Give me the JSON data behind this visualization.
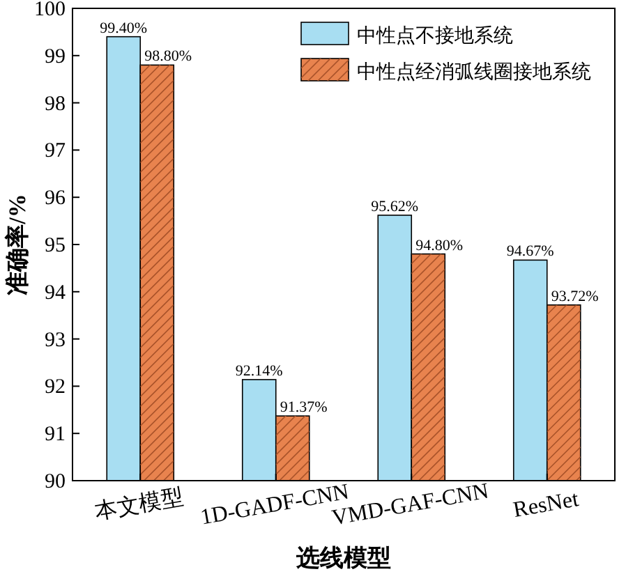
{
  "chart_data": {
    "type": "bar",
    "categories": [
      "本文模型",
      "1D-GADF-CNN",
      "VMD-GAF-CNN",
      "ResNet"
    ],
    "series": [
      {
        "name": "中性点不接地系统",
        "color": "#a8def2",
        "values": [
          99.4,
          92.14,
          95.62,
          94.67
        ],
        "value_labels": [
          "99.40%",
          "92.14%",
          "95.62%",
          "94.67%"
        ]
      },
      {
        "name": "中性点经消弧线圈接地系统",
        "color": "#e8834e",
        "values": [
          98.8,
          91.37,
          94.8,
          93.72
        ],
        "value_labels": [
          "98.80%",
          "91.37%",
          "94.80%",
          "93.72%"
        ]
      }
    ],
    "xlabel": "选线模型",
    "ylabel": "准确率/%",
    "ylim": [
      90,
      100
    ],
    "yticks": [
      90,
      91,
      92,
      93,
      94,
      95,
      96,
      97,
      98,
      99,
      100
    ],
    "legend": "top right"
  }
}
